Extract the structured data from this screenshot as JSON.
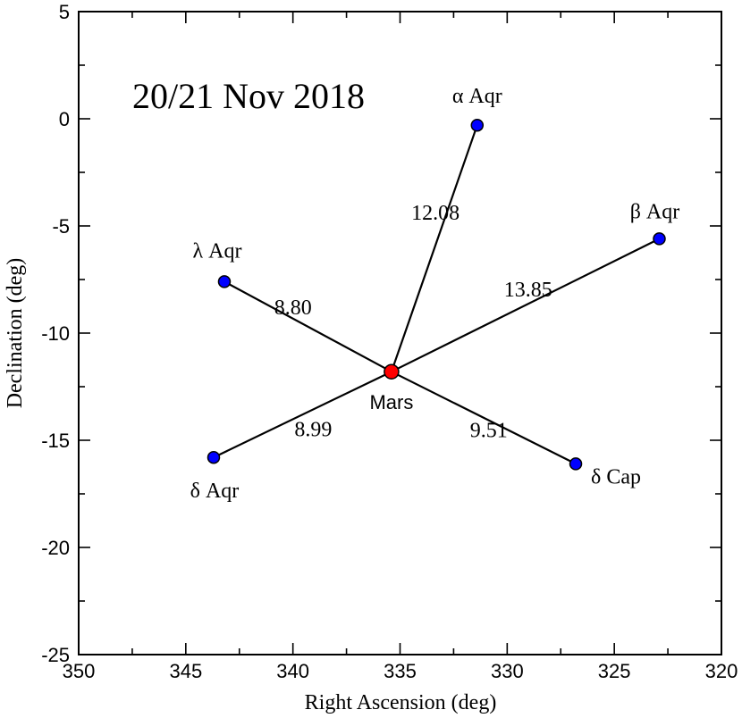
{
  "chart_data": {
    "type": "scatter",
    "title": "20/21 Nov 2018",
    "xlabel": "Right Ascension (deg)",
    "ylabel": "Declination (deg)",
    "xlim": [
      350,
      320
    ],
    "ylim": [
      -25,
      5
    ],
    "x_major_ticks": [
      350,
      345,
      340,
      335,
      330,
      325,
      320
    ],
    "y_major_ticks": [
      5,
      0,
      -5,
      -10,
      -15,
      -20,
      -25
    ],
    "x_tick_labels": [
      "350",
      "345",
      "340",
      "335",
      "330",
      "325",
      "320"
    ],
    "y_tick_labels": [
      "5",
      "0",
      "-5",
      "-10",
      "-15",
      "-20",
      "-25"
    ],
    "center": {
      "name": "Mars",
      "ra": 335.4,
      "dec": -11.8,
      "color": "#ff0000"
    },
    "stars": [
      {
        "name": "α Aqr",
        "ra": 331.4,
        "dec": -0.3,
        "distance": "12.08",
        "color": "#0000ff"
      },
      {
        "name": "β Aqr",
        "ra": 322.9,
        "dec": -5.6,
        "distance": "13.85",
        "color": "#0000ff"
      },
      {
        "name": "λ Aqr",
        "ra": 343.2,
        "dec": -7.6,
        "distance": "8.80",
        "color": "#0000ff"
      },
      {
        "name": "δ Aqr",
        "ra": 343.7,
        "dec": -15.8,
        "distance": "8.99",
        "color": "#0000ff"
      },
      {
        "name": "δ Cap",
        "ra": 326.8,
        "dec": -16.1,
        "distance": "9.51",
        "color": "#0000ff"
      }
    ]
  }
}
